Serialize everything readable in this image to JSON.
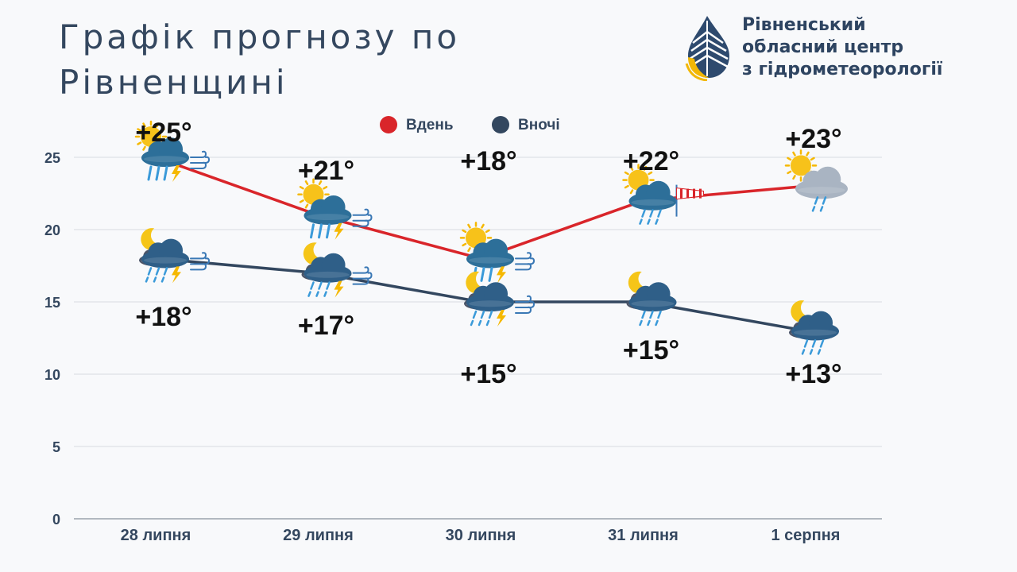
{
  "title_lines": [
    "Графік прогнозу по",
    "Рівненщині"
  ],
  "logo": {
    "lines": [
      "Рівненський",
      "обласний центр",
      "з гідрометеорології"
    ]
  },
  "chart_data": {
    "type": "line",
    "categories": [
      "28 липня",
      "29 липня",
      "30 липня",
      "31 липня",
      "1 серпня"
    ],
    "series": [
      {
        "name": "Вдень",
        "color": "#d9252a",
        "values": [
          25,
          21,
          18,
          22,
          23
        ],
        "labels": [
          "+25°",
          "+21°",
          "+18°",
          "+22°",
          "+23°"
        ],
        "icons": [
          "sun-cloud-thunderstorm-wind-icon",
          "sun-cloud-thunderstorm-wind-icon",
          "sun-cloud-thunderstorm-wind-icon",
          "sun-cloud-rain-windsock-icon",
          "sun-cloud-rain-icon"
        ]
      },
      {
        "name": "Вночі",
        "color": "#33475f",
        "values": [
          18,
          17,
          15,
          15,
          13
        ],
        "labels": [
          "+18°",
          "+17°",
          "+15°",
          "+15°",
          "+13°"
        ],
        "icons": [
          "moon-cloud-thunderstorm-wind-icon",
          "moon-cloud-thunderstorm-wind-icon",
          "moon-cloud-thunderstorm-wind-icon",
          "moon-cloud-rain-icon",
          "moon-cloud-rain-icon"
        ]
      }
    ],
    "ylim": [
      0,
      25
    ],
    "yticks": [
      0,
      5,
      10,
      15,
      20,
      25
    ],
    "grid": true,
    "legend_position": "top-center"
  }
}
